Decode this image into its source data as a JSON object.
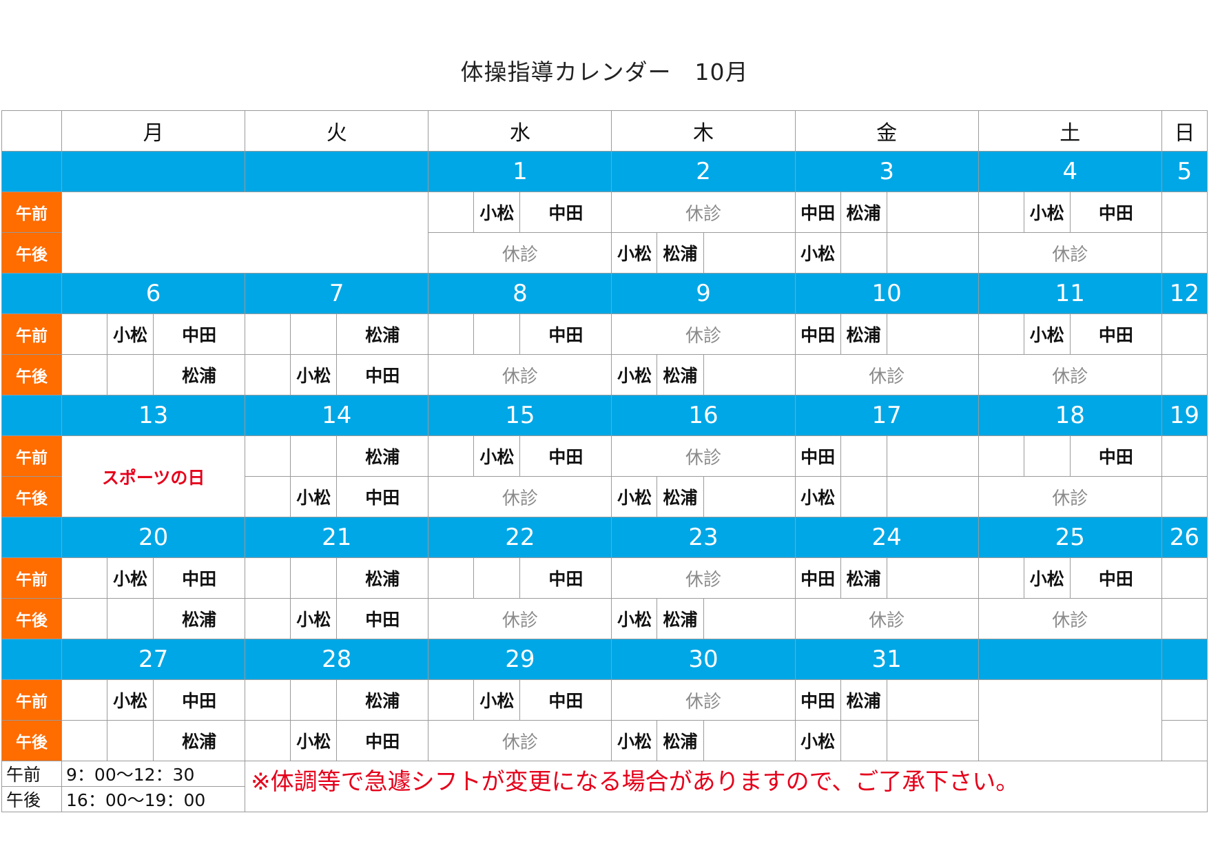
{
  "title": "体操指導カレンダー　10月",
  "dow": [
    "月",
    "火",
    "水",
    "木",
    "金",
    "土",
    "日"
  ],
  "shift_am": "午前",
  "shift_pm": "午後",
  "closed": "休診",
  "staff": {
    "komatsu": "小松",
    "nakata": "中田",
    "matsuura": "松浦"
  },
  "weeks": [
    {
      "dates": [
        "",
        "",
        "1",
        "2",
        "3",
        "4",
        "5"
      ]
    },
    {
      "dates": [
        "6",
        "7",
        "8",
        "9",
        "10",
        "11",
        "12"
      ]
    },
    {
      "dates": [
        "13",
        "14",
        "15",
        "16",
        "17",
        "18",
        "19"
      ]
    },
    {
      "dates": [
        "20",
        "21",
        "22",
        "23",
        "24",
        "25",
        "26"
      ]
    },
    {
      "dates": [
        "27",
        "28",
        "29",
        "30",
        "31",
        "",
        ""
      ]
    }
  ],
  "holiday_label": "スポーツの日",
  "hours": {
    "am_label": "午前",
    "am_time": "9：00～12：30",
    "pm_label": "午後",
    "pm_time": "16：00～19：00"
  },
  "notice": "※体調等で急遽シフトが変更になる場合がありますので、ご了承下さい。",
  "colors": {
    "date_bar": "#00a7e6",
    "shift_label": "#ff6c00",
    "notice": "#e5001a",
    "closed": "#8a8a8a"
  }
}
